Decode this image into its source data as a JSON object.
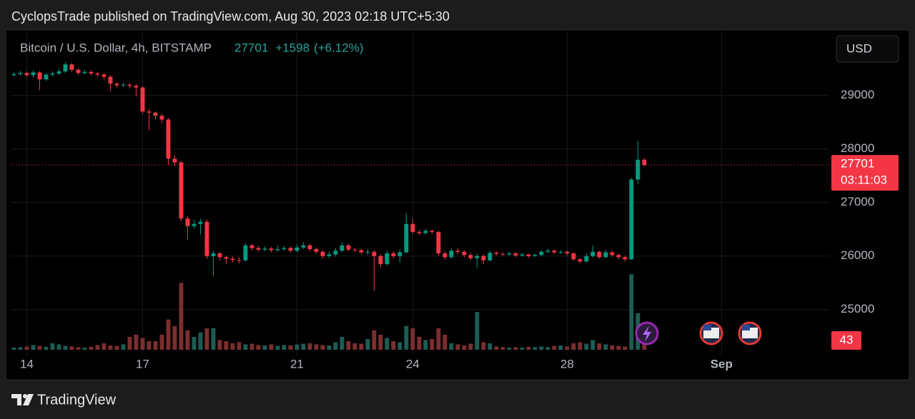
{
  "header": {
    "attribution": "CyclopsTrade published on TradingView.com, Aug 30, 2023 02:18 UTC+5:30"
  },
  "chart_data": {
    "type": "candlestick",
    "symbol": "Bitcoin / U.S. Dollar, 4h, BITSTAMP",
    "change": "+1598",
    "change_pct": "(+6.12%)",
    "currency": "USD",
    "countdown": "03:11:03",
    "x": [
      -8,
      -4,
      0,
      4,
      8,
      12,
      16,
      20,
      24,
      28,
      32,
      36,
      40,
      44,
      48,
      52,
      56,
      60,
      64,
      68,
      72,
      76,
      80,
      84,
      88,
      92,
      96,
      100,
      104,
      108,
      112,
      116,
      120,
      124,
      128,
      132,
      136,
      140,
      144,
      148,
      152,
      156,
      160,
      164,
      168,
      172,
      176,
      180,
      184,
      188,
      192,
      196,
      200,
      204,
      208,
      212,
      216,
      220,
      224,
      228,
      232,
      236,
      240,
      244,
      248,
      252,
      256,
      260,
      264,
      268,
      272,
      276,
      280,
      284,
      288,
      292,
      296,
      300,
      304,
      308,
      312,
      316,
      320,
      324,
      328,
      332,
      336,
      340,
      344,
      348,
      352,
      356,
      360,
      364,
      368,
      372,
      376,
      380,
      384
    ],
    "open": [
      29380,
      29400,
      29420,
      29380,
      29430,
      29300,
      29390,
      29410,
      29450,
      29580,
      29480,
      29420,
      29440,
      29410,
      29390,
      29350,
      29220,
      29190,
      29200,
      29180,
      29150,
      28700,
      28680,
      28620,
      28550,
      27820,
      27750,
      26700,
      26560,
      26600,
      26640,
      26000,
      26050,
      25980,
      25950,
      25930,
      25920,
      26200,
      26150,
      26120,
      26140,
      26110,
      26130,
      26150,
      26100,
      26160,
      26200,
      26130,
      26080,
      26000,
      26030,
      26100,
      26200,
      26120,
      26110,
      26070,
      26080,
      26000,
      25850,
      26050,
      26000,
      26070,
      26600,
      26450,
      26430,
      26470,
      26450,
      26050,
      25980,
      26100,
      26080,
      26020,
      25960,
      26000,
      25920,
      26060,
      26040,
      26030,
      26050,
      26010,
      26030,
      26000,
      26020,
      26080,
      26100,
      26070,
      26080,
      26050,
      25940,
      25900,
      26000,
      26080,
      25980,
      26070,
      26020,
      25980,
      25940,
      27430,
      27800
    ],
    "high": [
      29440,
      29460,
      29450,
      29470,
      29450,
      29420,
      29450,
      29500,
      29620,
      29600,
      29510,
      29480,
      29470,
      29440,
      29420,
      29380,
      29250,
      29240,
      29230,
      29210,
      29170,
      28750,
      28700,
      28660,
      28580,
      27880,
      27780,
      26750,
      26680,
      26700,
      26680,
      26100,
      26080,
      26010,
      25990,
      25980,
      26240,
      26230,
      26190,
      26180,
      26170,
      26200,
      26190,
      26180,
      26220,
      26260,
      26230,
      26160,
      26110,
      26080,
      26150,
      26260,
      26230,
      26160,
      26140,
      26130,
      26110,
      26040,
      26100,
      26090,
      26120,
      26800,
      26700,
      26490,
      26510,
      26500,
      26480,
      26090,
      26150,
      26140,
      26110,
      26060,
      26050,
      26030,
      26100,
      26090,
      26070,
      26080,
      26070,
      26060,
      26050,
      26050,
      26110,
      26140,
      26130,
      26110,
      26100,
      26070,
      25970,
      26050,
      26200,
      26100,
      26120,
      26100,
      26050,
      26010,
      27460,
      28150,
      27830
    ],
    "low": [
      29350,
      29370,
      29340,
      29330,
      29100,
      29270,
      29360,
      29380,
      29420,
      29440,
      29380,
      29390,
      29370,
      29350,
      29300,
      29080,
      29150,
      29160,
      29130,
      28980,
      28650,
      28350,
      28550,
      28480,
      27700,
      27680,
      26650,
      26300,
      26520,
      26400,
      25950,
      25620,
      25920,
      25850,
      25880,
      25860,
      25900,
      26100,
      26080,
      26090,
      26070,
      26080,
      26100,
      26060,
      26070,
      26130,
      26090,
      26040,
      25950,
      25960,
      25990,
      26070,
      26090,
      26070,
      26030,
      26020,
      25350,
      25780,
      25820,
      25960,
      25880,
      26050,
      26420,
      26390,
      26400,
      26410,
      26000,
      25930,
      25950,
      26040,
      25980,
      25920,
      25780,
      25850,
      25900,
      26010,
      26000,
      26010,
      25980,
      25990,
      25970,
      25990,
      26000,
      26060,
      26040,
      26040,
      26010,
      25910,
      25860,
      25880,
      25970,
      25950,
      25960,
      25990,
      25940,
      25900,
      25930,
      27350,
      27680
    ],
    "close": [
      29400,
      29420,
      29380,
      29430,
      29300,
      29390,
      29410,
      29450,
      29580,
      29480,
      29420,
      29440,
      29410,
      29390,
      29350,
      29220,
      29190,
      29200,
      29180,
      29150,
      28700,
      28680,
      28620,
      28550,
      27820,
      27750,
      26700,
      26560,
      26600,
      26640,
      26000,
      26050,
      25980,
      25950,
      25930,
      25920,
      26200,
      26150,
      26120,
      26140,
      26110,
      26130,
      26150,
      26100,
      26160,
      26200,
      26130,
      26080,
      26000,
      26030,
      26100,
      26200,
      26120,
      26110,
      26070,
      26080,
      26000,
      25850,
      26050,
      26000,
      26070,
      26600,
      26450,
      26430,
      26470,
      26450,
      26050,
      25980,
      26100,
      26080,
      26020,
      25960,
      26000,
      25920,
      26060,
      26040,
      26030,
      26050,
      26010,
      26030,
      26000,
      26020,
      26080,
      26100,
      26070,
      26080,
      26050,
      25940,
      25900,
      26000,
      26080,
      25980,
      26070,
      26020,
      25980,
      25940,
      27430,
      27800,
      27701
    ],
    "volume": [
      10,
      12,
      15,
      22,
      18,
      14,
      30,
      25,
      18,
      15,
      12,
      10,
      14,
      22,
      30,
      20,
      18,
      25,
      60,
      70,
      55,
      40,
      40,
      70,
      140,
      110,
      310,
      90,
      60,
      80,
      100,
      100,
      45,
      40,
      30,
      35,
      25,
      28,
      22,
      20,
      25,
      18,
      22,
      20,
      24,
      28,
      30,
      25,
      22,
      20,
      35,
      60,
      40,
      30,
      28,
      50,
      90,
      70,
      55,
      40,
      35,
      110,
      100,
      60,
      45,
      50,
      100,
      70,
      30,
      25,
      20,
      28,
      175,
      35,
      30,
      15,
      12,
      10,
      12,
      10,
      14,
      12,
      15,
      12,
      18,
      20,
      15,
      30,
      35,
      28,
      45,
      30,
      25,
      20,
      18,
      15,
      350,
      170,
      43
    ],
    "up_color": "#089981",
    "down_color": "#f23645",
    "volume_up_color": "#1d5c53",
    "volume_down_color": "#7b2e2e",
    "xlim": [
      -10,
      499
    ],
    "xticks": [
      {
        "value": 0,
        "label": "14"
      },
      {
        "value": 72,
        "label": "17"
      },
      {
        "value": 168,
        "label": "21"
      },
      {
        "value": 240,
        "label": "24"
      },
      {
        "value": 336,
        "label": "28"
      },
      {
        "value": 432,
        "label": "Sep"
      }
    ],
    "ylim": [
      24250,
      30210
    ],
    "yticks": [
      25000,
      26000,
      27000,
      28000,
      29000
    ],
    "y2lim": [
      0,
      1480
    ],
    "grid": true
  },
  "footer": {
    "brand": "TradingView"
  }
}
